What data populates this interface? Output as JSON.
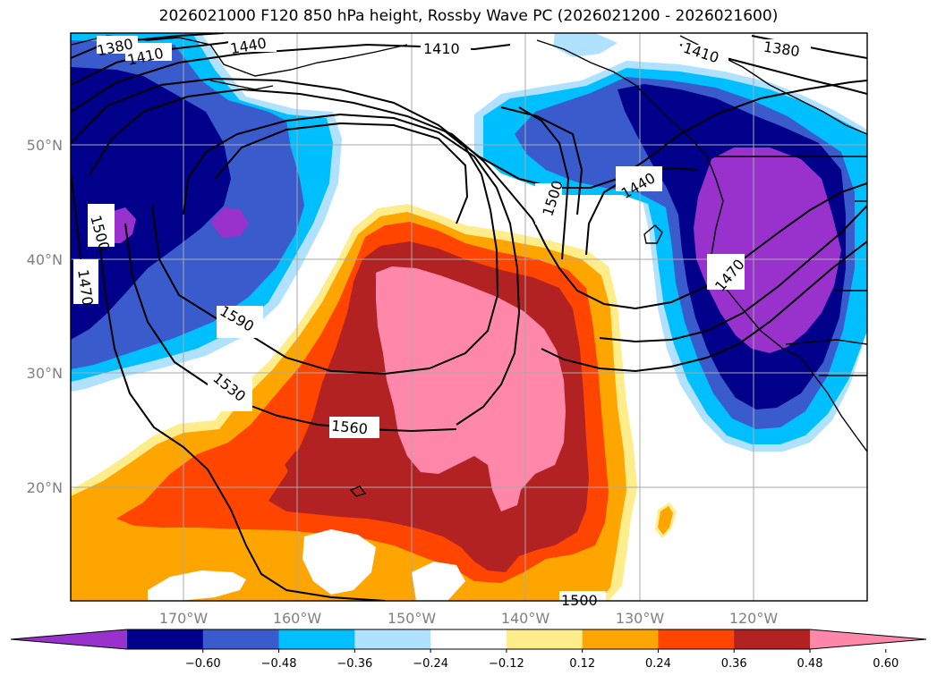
{
  "title": "2026021000 F120 850 hPa height, Rossby Wave PC (2026021200 - 2026021600)",
  "latitude_labels": [
    "50°N",
    "40°N",
    "30°N",
    "20°N"
  ],
  "longitude_labels": [
    "170°W",
    "160°W",
    "150°W",
    "140°W",
    "130°W",
    "120°W"
  ],
  "contour_labels": [
    {
      "name": "contour-label-1380-west",
      "text": "1380"
    },
    {
      "name": "contour-label-1410-west",
      "text": "1410"
    },
    {
      "name": "contour-label-1440-north",
      "text": "1440"
    },
    {
      "name": "contour-label-1410-north",
      "text": "1410"
    },
    {
      "name": "contour-label-1410-east",
      "text": "1410"
    },
    {
      "name": "contour-label-1380-east",
      "text": "1380"
    },
    {
      "name": "contour-label-1440-east",
      "text": "1440"
    },
    {
      "name": "contour-label-1500-center",
      "text": "1500"
    },
    {
      "name": "contour-label-1500-west",
      "text": "1500"
    },
    {
      "name": "contour-label-1470-west",
      "text": "1470"
    },
    {
      "name": "contour-label-1590",
      "text": "1590"
    },
    {
      "name": "contour-label-1530",
      "text": "1530"
    },
    {
      "name": "contour-label-1560",
      "text": "1560"
    },
    {
      "name": "contour-label-1470-east",
      "text": "1470"
    },
    {
      "name": "contour-label-1500-south",
      "text": "1500"
    }
  ],
  "colorbar": {
    "ticks": [
      "−0.60",
      "−0.48",
      "−0.36",
      "−0.24",
      "−0.12",
      "0.12",
      "0.24",
      "0.36",
      "0.48",
      "0.60"
    ],
    "colors": [
      "#9932cc",
      "#00008b",
      "#3a5bcc",
      "#00bfff",
      "#b0e2ff",
      "#ffffff",
      "#ffec8b",
      "#ffa500",
      "#ff4500",
      "#b22222",
      "#ff88aa"
    ]
  },
  "colors": {
    "pink": "#ff88aa",
    "firebrick": "#b22222",
    "orangered": "#ff4500",
    "orange": "#ffa500",
    "lightyellow": "#ffec8b",
    "lightblue": "#b0e2ff",
    "skyblue": "#00bfff",
    "royalblue": "#3a5bcc",
    "navy": "#00008b",
    "purple": "#9932cc"
  }
}
